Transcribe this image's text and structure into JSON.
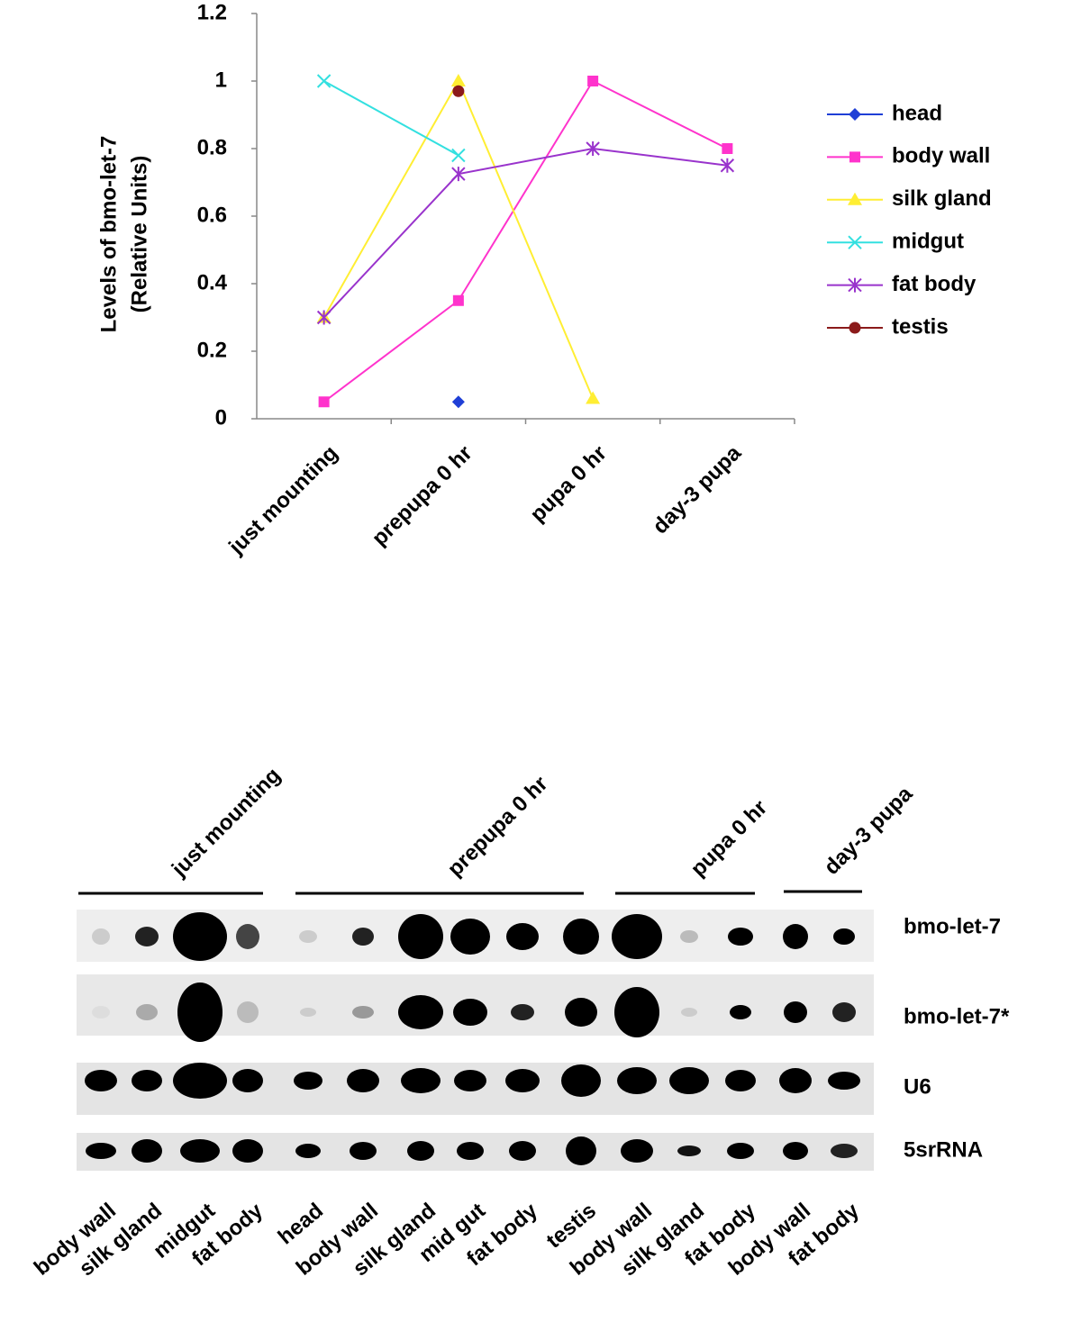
{
  "chart_data": {
    "type": "line",
    "ylabel": [
      "Levels of bmo-let-7",
      "(Relative Units)"
    ],
    "categories": [
      "just mounting",
      "prepupa 0 hr",
      "pupa 0 hr",
      "day-3 pupa"
    ],
    "ylim": [
      0,
      1.2
    ],
    "yticks": [
      0,
      0.2,
      0.4,
      0.6,
      0.8,
      1,
      1.2
    ],
    "legend": "right",
    "series": [
      {
        "name": "head",
        "color": "#1f3fd6",
        "marker": "diamond",
        "values": [
          null,
          0.05,
          null,
          null
        ]
      },
      {
        "name": "body wall",
        "color": "#ff33cc",
        "marker": "square",
        "values": [
          0.05,
          0.35,
          1.0,
          0.8
        ]
      },
      {
        "name": "silk gland",
        "color": "#ffee33",
        "marker": "triangle",
        "values": [
          0.3,
          1.0,
          0.06,
          null
        ]
      },
      {
        "name": "midgut",
        "color": "#33e0e0",
        "marker": "x",
        "values": [
          1.0,
          0.78,
          null,
          null
        ]
      },
      {
        "name": "fat body",
        "color": "#9933cc",
        "marker": "asterisk",
        "values": [
          0.3,
          0.725,
          0.8,
          0.75
        ]
      },
      {
        "name": "testis",
        "color": "#8b1a1a",
        "marker": "circle",
        "values": [
          null,
          0.97,
          null,
          null
        ]
      }
    ]
  },
  "blot": {
    "groups": [
      "just mounting",
      "prepupa 0 hr",
      "pupa 0 hr",
      "day-3 pupa"
    ],
    "rows": [
      "bmo-let-7",
      "bmo-let-7*",
      "U6",
      "5srRNA"
    ],
    "lanes": [
      "body wall",
      "silk gland",
      "midgut",
      "fat body",
      "head",
      "body wall",
      "silk gland",
      "mid gut",
      "fat body",
      "testis",
      "body wall",
      "silk gland",
      "fat body",
      "body wall",
      "fat body"
    ]
  }
}
